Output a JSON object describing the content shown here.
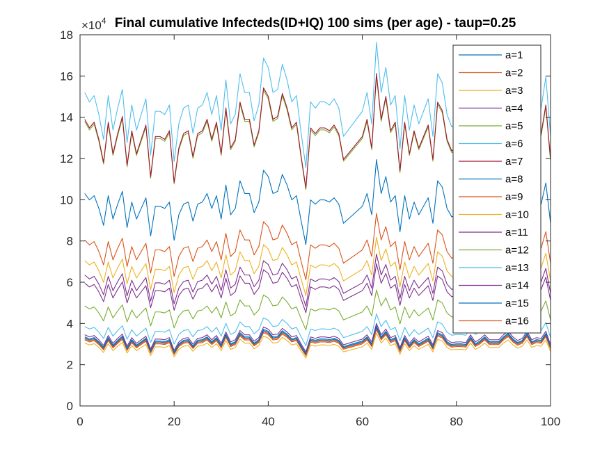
{
  "chart_data": {
    "type": "line",
    "title": "Final cumulative Infecteds(ID+IQ) 100 sims (per age) - taup=0.25",
    "xlabel": "",
    "ylabel": "",
    "xlim": [
      0,
      100
    ],
    "ylim": [
      0,
      18
    ],
    "y_multiplier_label": "×10",
    "y_multiplier_exponent": "4",
    "xticks": [
      "0",
      "20",
      "40",
      "60",
      "80",
      "100"
    ],
    "yticks": [
      "0",
      "2",
      "4",
      "6",
      "8",
      "10",
      "12",
      "14",
      "16",
      "18"
    ],
    "grid": false,
    "legend_position": "top-right",
    "x": [
      1,
      2,
      3,
      4,
      5,
      6,
      7,
      8,
      9,
      10,
      11,
      12,
      13,
      14,
      15,
      16,
      17,
      18,
      19,
      20,
      21,
      22,
      23,
      24,
      25,
      26,
      27,
      28,
      29,
      30,
      31,
      32,
      33,
      34,
      35,
      36,
      37,
      38,
      39,
      40,
      41,
      42,
      43,
      44,
      45,
      46,
      47,
      48,
      49,
      50,
      51,
      52,
      53,
      54,
      55,
      56,
      57,
      58,
      59,
      60,
      61,
      62,
      63,
      64,
      65,
      66,
      67,
      68,
      69,
      70,
      71,
      72,
      73,
      74,
      75,
      76,
      77,
      78,
      79,
      80,
      81,
      82,
      83,
      84,
      85,
      86,
      87,
      88,
      89,
      90,
      91,
      92,
      93,
      94,
      95,
      96,
      97,
      98,
      99,
      100
    ],
    "base_profile": [
      1.0,
      0.97,
      0.99,
      0.93,
      0.85,
      0.99,
      0.88,
      0.95,
      1.01,
      0.84,
      0.96,
      0.88,
      0.93,
      0.98,
      0.8,
      0.94,
      0.94,
      0.93,
      0.96,
      0.78,
      0.9,
      0.95,
      0.96,
      0.87,
      0.95,
      0.96,
      1.0,
      0.93,
      0.99,
      0.88,
      1.04,
      0.9,
      0.93,
      1.06,
      1.0,
      1.0,
      0.91,
      0.96,
      1.11,
      1.08,
      1.0,
      1.01,
      1.09,
      1.04,
      0.97,
      0.99,
      0.87,
      0.76,
      0.97,
      0.95,
      0.97,
      0.97,
      0.96,
      0.98,
      0.95,
      0.86,
      0.88,
      0.9,
      0.92,
      0.94,
      1.0,
      0.9,
      1.16,
      1.0,
      1.08,
      0.96,
      0.99,
      0.82,
      0.99,
      0.88,
      0.96,
      0.9,
      0.94,
      0.98,
      0.86,
      1.06,
      1.03,
      0.93,
      0.89,
      0.9,
      0.9,
      0.89,
      1.0,
      0.9,
      0.94,
      1.0,
      0.93,
      0.93,
      0.93,
      1.0,
      1.05,
      0.97,
      0.92,
      0.95,
      1.05,
      0.93,
      0.96,
      0.95,
      1.05,
      0.86
    ],
    "series": [
      {
        "name": "a=1",
        "color": "#0072BD",
        "scale": 3.35
      },
      {
        "name": "a=2",
        "color": "#D95319",
        "scale": 3.25
      },
      {
        "name": "a=3",
        "color": "#EDB120",
        "scale": 3.05
      },
      {
        "name": "a=4",
        "color": "#7E2F8E",
        "scale": 5.95
      },
      {
        "name": "a=5",
        "color": "#77AC30",
        "scale": 13.8
      },
      {
        "name": "a=6",
        "color": "#4DBEEE",
        "scale": 15.2
      },
      {
        "name": "a=7",
        "color": "#A2142F",
        "scale": 13.9
      },
      {
        "name": "a=8",
        "color": "#0072BD",
        "scale": 10.3
      },
      {
        "name": "a=9",
        "color": "#D95319",
        "scale": 8.05
      },
      {
        "name": "a=10",
        "color": "#EDB120",
        "scale": 7.05
      },
      {
        "name": "a=11",
        "color": "#7E2F8E",
        "scale": 6.35
      },
      {
        "name": "a=12",
        "color": "#77AC30",
        "scale": 4.85
      },
      {
        "name": "a=13",
        "color": "#4DBEEE",
        "scale": 3.85
      },
      {
        "name": "a=14",
        "color": "#7E2F8E",
        "scale": 3.45
      },
      {
        "name": "a=15",
        "color": "#0072BD",
        "scale": 3.3
      },
      {
        "name": "a=16",
        "color": "#D95319",
        "scale": 3.2
      }
    ]
  }
}
